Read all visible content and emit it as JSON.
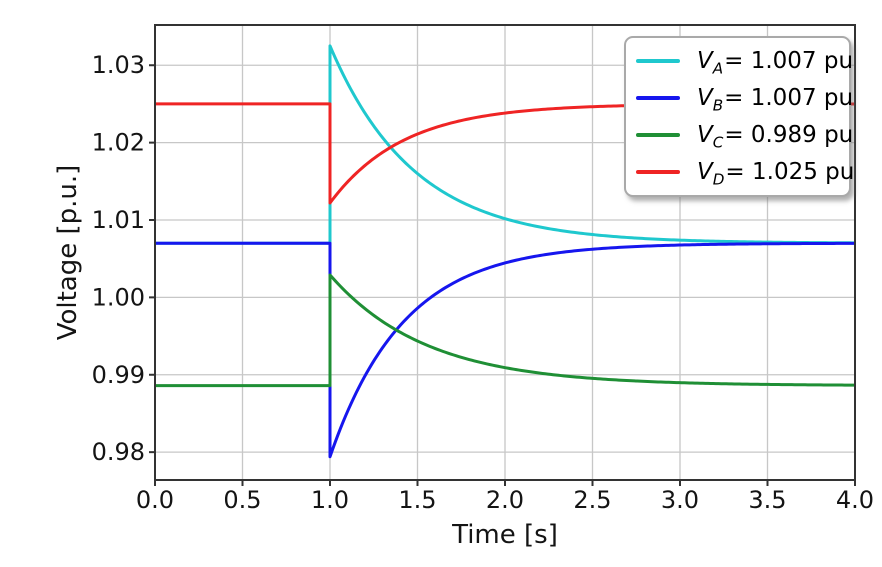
{
  "figure": {
    "background": "#ffffff",
    "text_color": "#141414"
  },
  "chart_data": {
    "type": "line",
    "title": "",
    "xlabel": "Time [s]",
    "ylabel": "Voltage [p.u.]",
    "xlim": [
      0.0,
      4.0
    ],
    "ylim": [
      0.9764,
      1.0352
    ],
    "grid": true,
    "grid_color": "#c7c7c7",
    "spine_color": "#333333",
    "tick_color": "#333333",
    "xticks": [
      0.0,
      0.5,
      1.0,
      1.5,
      2.0,
      2.5,
      3.0,
      3.5,
      4.0
    ],
    "xtick_labels": [
      "0.0",
      "0.5",
      "1.0",
      "1.5",
      "2.0",
      "2.5",
      "3.0",
      "3.5",
      "4.0"
    ],
    "yticks": [
      0.98,
      0.99,
      1.0,
      1.01,
      1.02,
      1.03
    ],
    "ytick_labels": [
      "0.98",
      "0.99",
      "1.00",
      "1.01",
      "1.02",
      "1.03"
    ],
    "legend": {
      "position": "upper right",
      "background": "#ffffff",
      "border_color": "#a9a9a9",
      "shadow": true
    },
    "event_time": 1.0,
    "model": "v(t) = v_pre for t < 1.0 s; v(t) = v_final + (v_step - v_final) * exp(-(t-1)/tau) for t >= 1.0 s",
    "samples_note": "sample value at t = 1.0 s is immediately after the step",
    "samples_t": [
      0.0,
      1.0,
      1.25,
      1.5,
      2.0,
      2.5,
      3.0,
      4.0
    ],
    "series": [
      {
        "name": "V_A",
        "label": "V_A = 1.007 pu",
        "sym": "V",
        "sub": "A",
        "legend_value": "= 1.007 pu",
        "color": "#1fc8ce",
        "v_pre": 1.007,
        "v_step": 1.0325,
        "v_final": 1.007,
        "tau": 0.48,
        "samples_v": [
          1.007,
          1.0325,
          1.0221,
          1.016,
          1.0102,
          1.0081,
          1.0074,
          1.007
        ]
      },
      {
        "name": "V_B",
        "label": "V_B = 1.007 pu",
        "sym": "V",
        "sub": "B",
        "legend_value": "= 1.007 pu",
        "color": "#1616ee",
        "v_pre": 1.007,
        "v_step": 0.9794,
        "v_final": 1.007,
        "tau": 0.42,
        "samples_v": [
          1.007,
          0.9794,
          0.9918,
          0.9986,
          1.0044,
          1.0062,
          1.0068,
          1.007
        ]
      },
      {
        "name": "V_C",
        "label": "V_C = 0.989 pu",
        "sym": "V",
        "sub": "C",
        "legend_value": "= 0.989 pu",
        "color": "#1f8f35",
        "v_pre": 0.9886,
        "v_step": 1.0029,
        "v_final": 0.9886,
        "tau": 0.55,
        "samples_v": [
          0.9886,
          1.0029,
          0.9977,
          0.9944,
          0.9909,
          0.9895,
          0.989,
          0.9887
        ]
      },
      {
        "name": "V_D",
        "label": "V_D = 1.025 pu",
        "sym": "V",
        "sub": "D",
        "legend_value": "= 1.025 pu",
        "color": "#ef2424",
        "v_pre": 1.025,
        "v_step": 1.0122,
        "v_final": 1.025,
        "tau": 0.42,
        "samples_v": [
          1.025,
          1.0122,
          1.0179,
          1.0211,
          1.0238,
          1.0246,
          1.0249,
          1.025
        ]
      }
    ]
  }
}
